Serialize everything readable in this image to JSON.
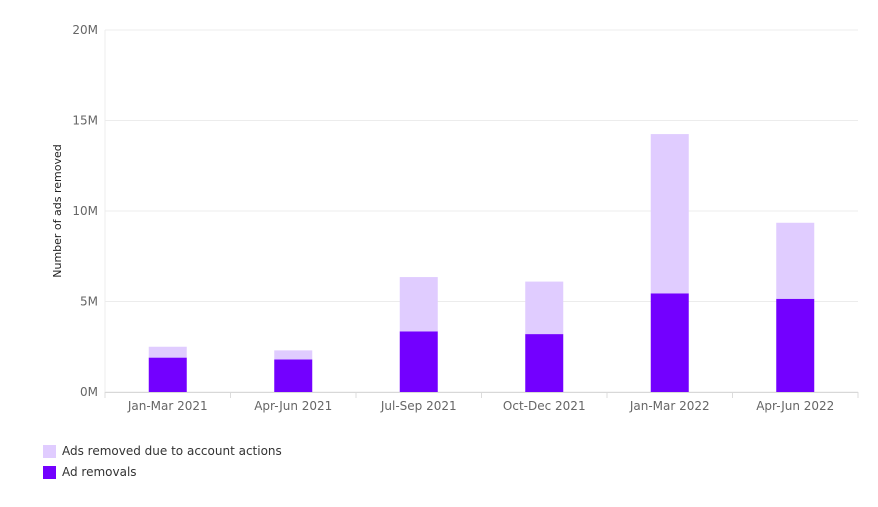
{
  "chart_data": {
    "type": "bar",
    "stacked": true,
    "categories": [
      "Jan-Mar 2021",
      "Apr-Jun 2021",
      "Jul-Sep 2021",
      "Oct-Dec 2021",
      "Jan-Mar 2022",
      "Apr-Jun 2022"
    ],
    "series": [
      {
        "name": "Ad removals",
        "color": "#7300ff",
        "values": [
          1.9,
          1.8,
          3.35,
          3.2,
          5.45,
          5.15
        ]
      },
      {
        "name": "Ads removed due to account actions",
        "color": "#e0ccff",
        "values": [
          0.6,
          0.5,
          3.0,
          2.9,
          8.8,
          4.2
        ]
      }
    ],
    "ylabel": "Number of ads removed",
    "ylim": [
      0,
      20
    ],
    "yticks": [
      0,
      5,
      10,
      15,
      20
    ],
    "ytick_labels": [
      "0M",
      "5M",
      "10M",
      "15M",
      "20M"
    ],
    "grid": true,
    "legend_position": "bottom-left"
  }
}
